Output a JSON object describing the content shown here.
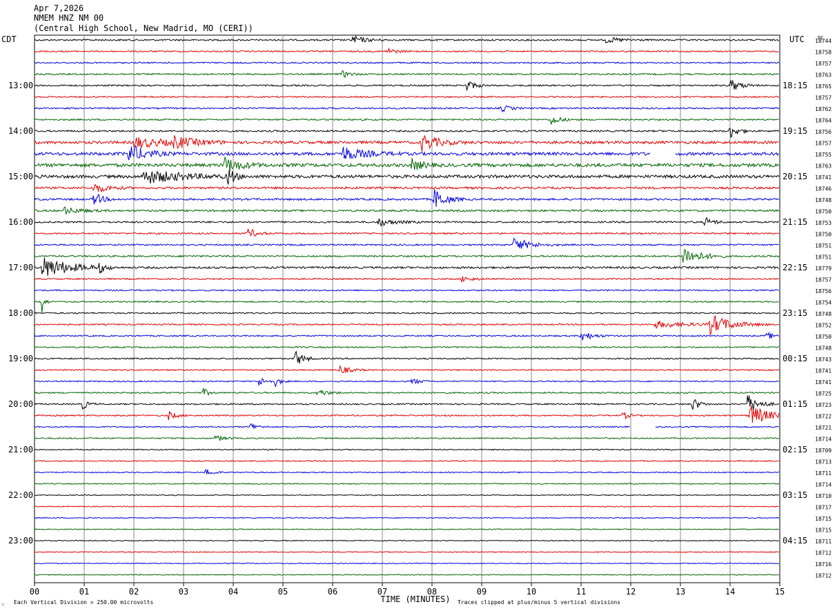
{
  "header": {
    "date": "Apr 7,2026",
    "station": "NMEM HNZ NM 00",
    "location": "(Central High School, New Madrid, MO (CERI))"
  },
  "left_timezone": "CDT",
  "right_timezone": "UTC",
  "dc_label": "DC",
  "footer": {
    "scale_note": "Each Vertical Division =  250.00 microvolts",
    "clip_note": "Traces clipped at plus/minus 5 vertical divisions",
    "logo_glyph": "⚔"
  },
  "colors": {
    "black": "#000000",
    "red": "#e00000",
    "blue": "#0000dd",
    "green": "#006400",
    "grid": "#888888"
  },
  "chart_data": {
    "type": "line",
    "title": "NMEM HNZ NM 00",
    "xlabel": "TIME (MINUTES)",
    "x_ticks": [
      "00",
      "01",
      "02",
      "03",
      "04",
      "05",
      "06",
      "07",
      "08",
      "09",
      "10",
      "11",
      "12",
      "13",
      "14",
      "15"
    ],
    "xlim": [
      0,
      15
    ],
    "left_hour_labels": [
      "13:00",
      "14:00",
      "15:00",
      "16:00",
      "17:00",
      "18:00",
      "19:00",
      "20:00",
      "21:00",
      "22:00",
      "23:00"
    ],
    "right_hour_labels": [
      "18:15",
      "19:15",
      "20:15",
      "21:15",
      "22:15",
      "23:15",
      "00:15",
      "01:15",
      "02:15",
      "03:15",
      "04:15"
    ],
    "trace_color_cycle": [
      "black",
      "red",
      "blue",
      "green"
    ],
    "trace_dc_offsets": [
      "18744",
      "18758",
      "18757",
      "18763",
      "18765",
      "18757",
      "18762",
      "18764",
      "18756",
      "18757",
      "18755",
      "18763",
      "18741",
      "18746",
      "18748",
      "18750",
      "18753",
      "18750",
      "18751",
      "18751",
      "18779",
      "18757",
      "18756",
      "18754",
      "18748",
      "18752",
      "18750",
      "18748",
      "18743",
      "18741",
      "18741",
      "18725",
      "18723",
      "18722",
      "18721",
      "18714",
      "18709",
      "18713",
      "18711",
      "18714",
      "18710",
      "18717",
      "18715",
      "18715",
      "18711",
      "18712",
      "18716",
      "18712"
    ],
    "trace_noise_level": [
      1.0,
      0.9,
      0.9,
      1.0,
      1.0,
      0.9,
      1.0,
      1.0,
      1.1,
      1.8,
      2.0,
      2.2,
      2.0,
      1.4,
      1.3,
      1.2,
      1.1,
      1.0,
      1.0,
      1.1,
      1.3,
      0.9,
      0.9,
      0.9,
      0.9,
      0.9,
      0.9,
      0.9,
      0.9,
      0.8,
      0.8,
      0.9,
      0.9,
      0.9,
      0.8,
      0.8,
      0.7,
      0.7,
      0.7,
      0.7,
      0.6,
      0.6,
      0.6,
      0.6,
      0.6,
      0.6,
      0.6,
      0.6
    ],
    "events": [
      {
        "trace": 0,
        "minute": 6.4,
        "amp": 6,
        "dur": 0.25
      },
      {
        "trace": 0,
        "minute": 11.5,
        "amp": 4,
        "dur": 0.3
      },
      {
        "trace": 1,
        "minute": 7.1,
        "amp": 5,
        "dur": 0.15
      },
      {
        "trace": 3,
        "minute": 6.2,
        "amp": 5,
        "dur": 0.15
      },
      {
        "trace": 4,
        "minute": 8.7,
        "amp": 8,
        "dur": 0.15
      },
      {
        "trace": 4,
        "minute": 14.0,
        "amp": 9,
        "dur": 0.2
      },
      {
        "trace": 6,
        "minute": 9.4,
        "amp": 5,
        "dur": 0.15
      },
      {
        "trace": 7,
        "minute": 10.4,
        "amp": 8,
        "dur": 0.15
      },
      {
        "trace": 8,
        "minute": 14.0,
        "amp": 10,
        "dur": 0.15
      },
      {
        "trace": 9,
        "minute": 2.0,
        "amp": 8,
        "dur": 0.6
      },
      {
        "trace": 9,
        "minute": 2.8,
        "amp": 7,
        "dur": 0.4
      },
      {
        "trace": 9,
        "minute": 7.8,
        "amp": 12,
        "dur": 0.3
      },
      {
        "trace": 10,
        "minute": 1.9,
        "amp": 14,
        "dur": 0.3
      },
      {
        "trace": 10,
        "minute": 6.2,
        "amp": 10,
        "dur": 0.4
      },
      {
        "trace": 11,
        "minute": 3.8,
        "amp": 12,
        "dur": 0.3
      },
      {
        "trace": 11,
        "minute": 7.6,
        "amp": 8,
        "dur": 0.2
      },
      {
        "trace": 12,
        "minute": 2.2,
        "amp": 10,
        "dur": 0.7
      },
      {
        "trace": 12,
        "minute": 3.9,
        "amp": 14,
        "dur": 0.1
      },
      {
        "trace": 13,
        "minute": 1.2,
        "amp": 7,
        "dur": 0.25
      },
      {
        "trace": 14,
        "minute": 1.2,
        "amp": 10,
        "dur": 0.15
      },
      {
        "trace": 14,
        "minute": 8.05,
        "amp": 16,
        "dur": 0.2
      },
      {
        "trace": 15,
        "minute": 0.6,
        "amp": 5,
        "dur": 0.3
      },
      {
        "trace": 16,
        "minute": 6.9,
        "amp": 6,
        "dur": 0.3
      },
      {
        "trace": 16,
        "minute": 13.5,
        "amp": 7,
        "dur": 0.15
      },
      {
        "trace": 17,
        "minute": 4.3,
        "amp": 8,
        "dur": 0.15
      },
      {
        "trace": 18,
        "minute": 9.65,
        "amp": 10,
        "dur": 0.3
      },
      {
        "trace": 19,
        "minute": 13.05,
        "amp": 14,
        "dur": 0.3
      },
      {
        "trace": 20,
        "minute": 0.15,
        "amp": 16,
        "dur": 0.5
      },
      {
        "trace": 20,
        "minute": 1.3,
        "amp": 7,
        "dur": 0.1
      },
      {
        "trace": 21,
        "minute": 8.6,
        "amp": 4,
        "dur": 0.2
      },
      {
        "trace": 23,
        "minute": 0.15,
        "amp": 18,
        "dur": 0.05
      },
      {
        "trace": 25,
        "minute": 13.6,
        "amp": 14,
        "dur": 0.4
      },
      {
        "trace": 25,
        "minute": 12.5,
        "amp": 5,
        "dur": 0.6
      },
      {
        "trace": 26,
        "minute": 11.0,
        "amp": 8,
        "dur": 0.2
      },
      {
        "trace": 26,
        "minute": 14.75,
        "amp": 6,
        "dur": 0.1
      },
      {
        "trace": 28,
        "minute": 5.25,
        "amp": 12,
        "dur": 0.15
      },
      {
        "trace": 29,
        "minute": 6.15,
        "amp": 6,
        "dur": 0.2
      },
      {
        "trace": 30,
        "minute": 4.5,
        "amp": 7,
        "dur": 0.15
      },
      {
        "trace": 30,
        "minute": 4.85,
        "amp": 6,
        "dur": 0.1
      },
      {
        "trace": 30,
        "minute": 7.6,
        "amp": 5,
        "dur": 0.15
      },
      {
        "trace": 31,
        "minute": 5.7,
        "amp": 5,
        "dur": 0.2
      },
      {
        "trace": 31,
        "minute": 3.4,
        "amp": 6,
        "dur": 0.1
      },
      {
        "trace": 32,
        "minute": 0.95,
        "amp": 9,
        "dur": 0.1
      },
      {
        "trace": 32,
        "minute": 13.25,
        "amp": 10,
        "dur": 0.12
      },
      {
        "trace": 32,
        "minute": 14.35,
        "amp": 14,
        "dur": 0.2
      },
      {
        "trace": 33,
        "minute": 2.7,
        "amp": 6,
        "dur": 0.15
      },
      {
        "trace": 33,
        "minute": 11.85,
        "amp": 6,
        "dur": 0.1
      },
      {
        "trace": 33,
        "minute": 14.4,
        "amp": 16,
        "dur": 0.35
      },
      {
        "trace": 34,
        "minute": 4.35,
        "amp": 6,
        "dur": 0.12
      },
      {
        "trace": 35,
        "minute": 3.65,
        "amp": 5,
        "dur": 0.15
      },
      {
        "trace": 38,
        "minute": 3.45,
        "amp": 6,
        "dur": 0.12
      }
    ],
    "gaps": [
      {
        "trace": 10,
        "start": 12.4,
        "end": 12.9
      },
      {
        "trace": 34,
        "start": 12.0,
        "end": 12.5
      }
    ]
  }
}
